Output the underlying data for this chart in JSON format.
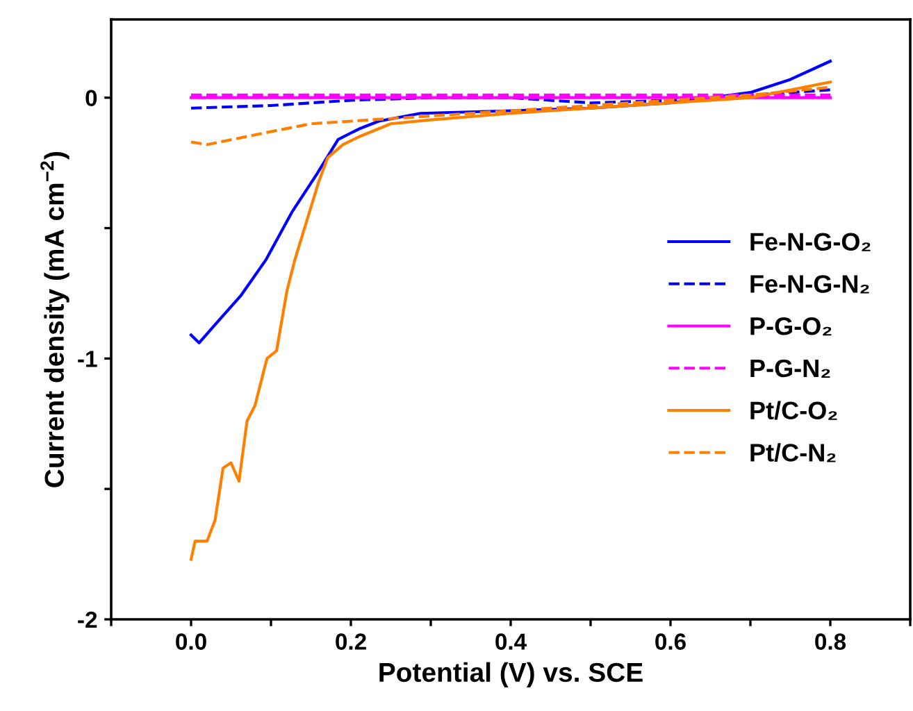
{
  "chart_data": {
    "type": "line",
    "xlabel": "Potential (V) vs. SCE",
    "ylabel": "Current density (mA cm$^{−2}$)",
    "xlim": [
      -0.1,
      0.9
    ],
    "ylim": [
      -2,
      0.3
    ],
    "xticks": [
      {
        "value": -0.1,
        "label": null
      },
      {
        "value": 0,
        "label": "0.0"
      },
      {
        "value": 0.1,
        "label": null
      },
      0.2,
      {
        "value": 0.3,
        "label": null
      },
      0.4,
      {
        "value": 0.5,
        "label": null
      },
      0.6,
      {
        "value": 0.7,
        "label": null
      },
      0.8,
      {
        "value": 0.9,
        "label": null
      }
    ],
    "yticks": [
      -2,
      {
        "value": -1.5,
        "label": null
      },
      -1,
      {
        "value": -0.5,
        "label": null
      },
      0
    ],
    "grid": false,
    "legend": "right",
    "marker": "none",
    "series": [
      {
        "name": "Fe-N-G-O₂",
        "color": "#0000ff",
        "line_style": "solid",
        "x": [
          0.0,
          0.01,
          0.03,
          0.062,
          0.094,
          0.126,
          0.158,
          0.184,
          0.21,
          0.235,
          0.287,
          0.4,
          0.5,
          0.6,
          0.65,
          0.7,
          0.75,
          0.8
        ],
        "values": [
          -0.91,
          -0.94,
          -0.87,
          -0.76,
          -0.62,
          -0.44,
          -0.29,
          -0.16,
          -0.12,
          -0.09,
          -0.06,
          -0.05,
          -0.04,
          -0.02,
          0.0,
          0.02,
          0.07,
          0.14
        ]
      },
      {
        "name": "Fe-N-G-N₂",
        "color": "#0000ff",
        "line_style": "dashed",
        "x": [
          0.0,
          0.1,
          0.2,
          0.3,
          0.4,
          0.5,
          0.6,
          0.7,
          0.8
        ],
        "values": [
          -0.04,
          -0.03,
          -0.01,
          0.0,
          0.0,
          -0.02,
          -0.01,
          0.01,
          0.03
        ]
      },
      {
        "name": "P-G-O₂",
        "color": "#ff00ff",
        "line_style": "solid",
        "x": [
          0.0,
          0.2,
          0.4,
          0.6,
          0.8
        ],
        "values": [
          0.0,
          0.0,
          0.0,
          0.0,
          0.0
        ]
      },
      {
        "name": "P-G-N₂",
        "color": "#ff00ff",
        "line_style": "dashed",
        "x": [
          0.0,
          0.2,
          0.4,
          0.6,
          0.8
        ],
        "values": [
          0.01,
          0.01,
          0.01,
          0.01,
          0.01
        ]
      },
      {
        "name": "Pt/C-O₂",
        "color": "#ff8000",
        "line_style": "solid",
        "x": [
          0.0,
          0.005,
          0.02,
          0.03,
          0.04,
          0.05,
          0.06,
          0.07,
          0.08,
          0.095,
          0.107,
          0.12,
          0.13,
          0.146,
          0.16,
          0.171,
          0.19,
          0.21,
          0.25,
          0.3,
          0.4,
          0.5,
          0.6,
          0.7,
          0.75,
          0.8
        ],
        "values": [
          -1.77,
          -1.7,
          -1.7,
          -1.62,
          -1.42,
          -1.4,
          -1.47,
          -1.24,
          -1.18,
          -1.0,
          -0.97,
          -0.74,
          -0.62,
          -0.46,
          -0.32,
          -0.23,
          -0.18,
          -0.15,
          -0.1,
          -0.085,
          -0.06,
          -0.04,
          -0.02,
          0.0,
          0.03,
          0.06
        ]
      },
      {
        "name": "Pt/C-N₂",
        "color": "#ff8000",
        "line_style": "dashed",
        "x": [
          0.0,
          0.02,
          0.1,
          0.15,
          0.2,
          0.3,
          0.4,
          0.5,
          0.6,
          0.7,
          0.8
        ],
        "values": [
          -0.17,
          -0.18,
          -0.13,
          -0.1,
          -0.09,
          -0.07,
          -0.05,
          -0.03,
          -0.01,
          0.01,
          0.04
        ]
      }
    ]
  }
}
